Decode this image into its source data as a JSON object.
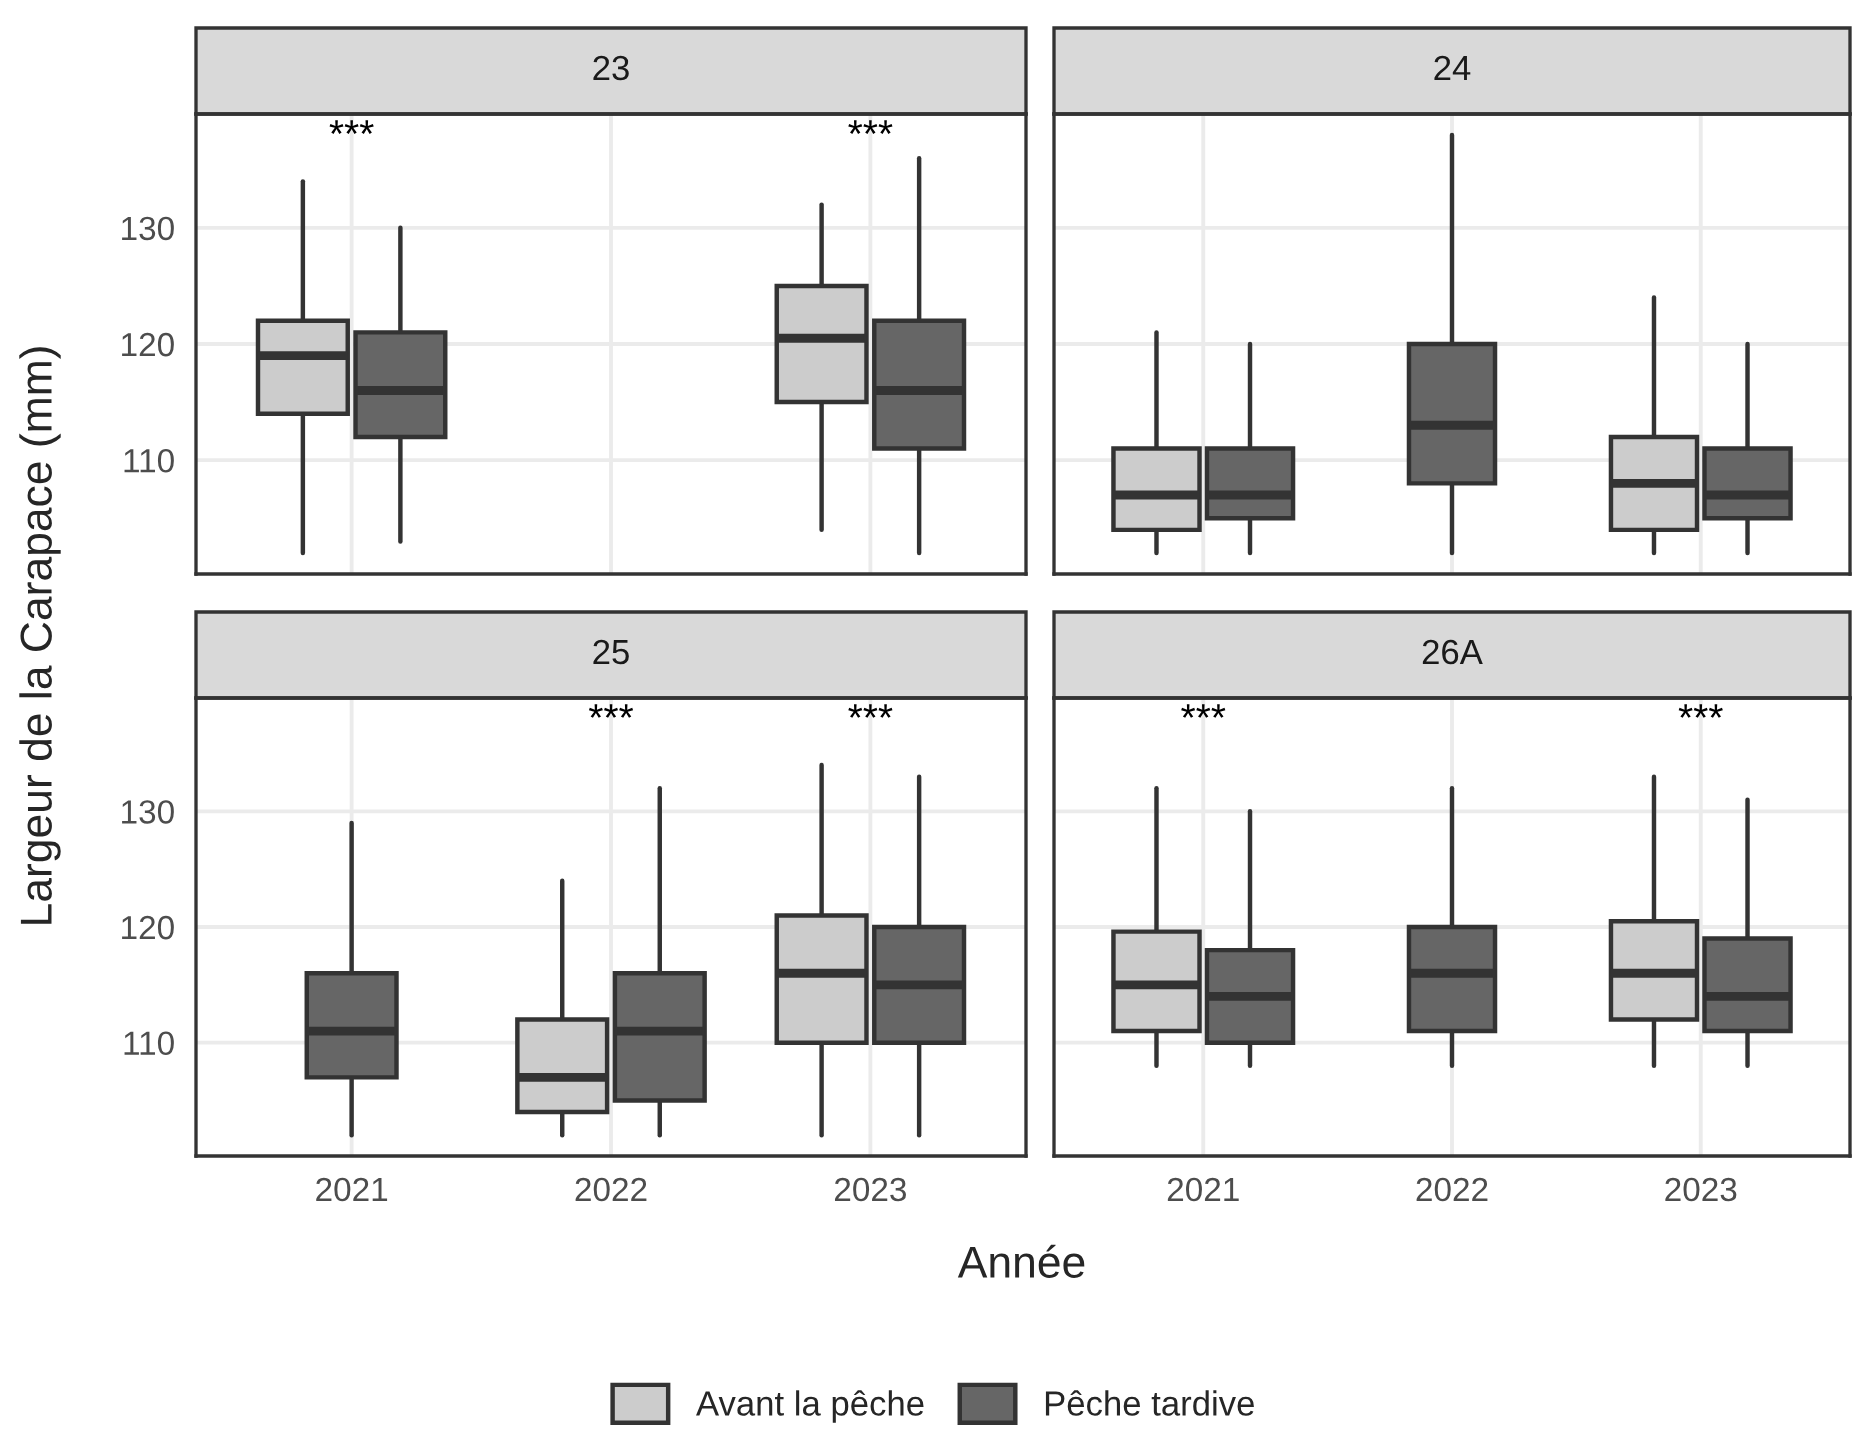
{
  "chart_data": [
    {
      "type": "box",
      "title": "23",
      "ylabel": "Largeur de la Carapace (mm)",
      "categories": [
        "2021",
        "2022",
        "2023"
      ],
      "ylim": [
        100.2,
        139.8
      ],
      "yticks": [
        110,
        120,
        130
      ],
      "tick_labels": "y",
      "grid": true,
      "legend": "bottom",
      "series": [
        {
          "name": "Avant la pêche",
          "color": "#cccccc",
          "boxes": [
            {
              "low": 102,
              "q1": 114,
              "median": 119,
              "q3": 122,
              "high": 134
            },
            null,
            {
              "low": 104,
              "q1": 115,
              "median": 120.5,
              "q3": 125,
              "high": 132
            }
          ]
        },
        {
          "name": "Pêche tardive",
          "color": "#666666",
          "boxes": [
            {
              "low": 103,
              "q1": 112,
              "median": 116,
              "q3": 121,
              "high": 130
            },
            null,
            {
              "low": 102,
              "q1": 111,
              "median": 116,
              "q3": 122,
              "high": 136
            }
          ]
        }
      ],
      "annotations": [
        "***",
        "***"
      ]
    },
    {
      "type": "box",
      "title": "24",
      "categories": [
        "2021",
        "2022",
        "2023"
      ],
      "ylim": [
        100.2,
        139.8
      ],
      "yticks": [
        110,
        120,
        130
      ],
      "tick_labels": false,
      "grid": true,
      "series": [
        {
          "color": "#cccccc",
          "boxes": [
            {
              "low": 102,
              "q1": 104,
              "median": 107,
              "q3": 111,
              "high": 121
            },
            null,
            {
              "low": 102,
              "q1": 104,
              "median": 108,
              "q3": 112,
              "high": 124
            }
          ]
        },
        {
          "color": "#666666",
          "boxes": [
            {
              "low": 102,
              "q1": 105,
              "median": 107,
              "q3": 111,
              "high": 120
            },
            {
              "low": 102,
              "q1": 108,
              "median": 113,
              "q3": 120,
              "high": 138
            },
            {
              "low": 102,
              "q1": 105,
              "median": 107,
              "q3": 111,
              "high": 120
            }
          ]
        }
      ]
    },
    {
      "type": "box",
      "title": "25",
      "xlabel": "Année",
      "categories": [
        "2021",
        "2022",
        "2023"
      ],
      "ylim": [
        100.2,
        139.8
      ],
      "yticks": [
        110,
        120,
        130
      ],
      "grid": true,
      "series": [
        {
          "color": "#cccccc",
          "boxes": [
            null,
            {
              "low": 102,
              "q1": 104,
              "median": 107,
              "q3": 112,
              "high": 124
            },
            {
              "low": 102,
              "q1": 110,
              "median": 116,
              "q3": 121,
              "high": 134
            }
          ]
        },
        {
          "color": "#666666",
          "boxes": [
            {
              "low": 102,
              "q1": 107,
              "median": 111,
              "q3": 116,
              "high": 129
            },
            {
              "low": 102,
              "q1": 105,
              "median": 111,
              "q3": 116,
              "high": 132
            },
            {
              "low": 102,
              "q1": 110,
              "median": 115,
              "q3": 120,
              "high": 133
            }
          ]
        }
      ],
      "annotations": [
        "***",
        "***"
      ]
    },
    {
      "type": "box",
      "title": "26A",
      "categories": [
        "2021",
        "2022",
        "2023"
      ],
      "ylim": [
        100.2,
        139.8
      ],
      "yticks": [
        110,
        120,
        130
      ],
      "tick_labels": "x",
      "grid": true,
      "series": [
        {
          "color": "#cccccc",
          "boxes": [
            {
              "low": 108,
              "q1": 111,
              "median": 115,
              "q3": 119.6,
              "high": 132
            },
            null,
            {
              "low": 108,
              "q1": 112,
              "median": 116,
              "q3": 120.5,
              "high": 133
            }
          ]
        },
        {
          "color": "#666666",
          "boxes": [
            {
              "low": 108,
              "q1": 110,
              "median": 114,
              "q3": 118,
              "high": 130
            },
            {
              "low": 108,
              "q1": 111,
              "median": 116,
              "q3": 120,
              "high": 132
            },
            {
              "low": 108,
              "q1": 111,
              "median": 114,
              "q3": 119,
              "high": 131
            }
          ]
        }
      ],
      "annotations": [
        "***",
        "***"
      ]
    }
  ]
}
